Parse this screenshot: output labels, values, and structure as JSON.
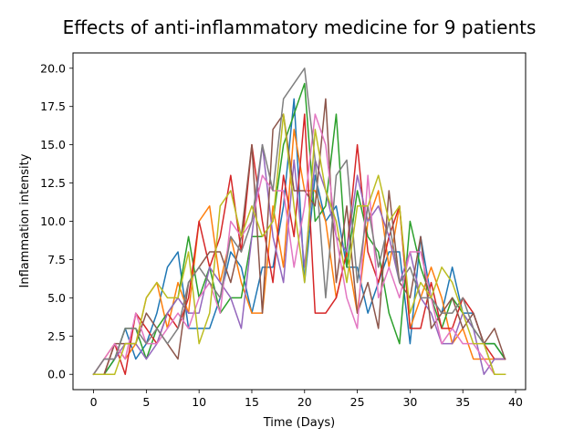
{
  "chart_data": {
    "type": "line",
    "title": "Effects of anti-inflammatory medicine for 9 patients",
    "xlabel": "Time (Days)",
    "ylabel": "Inflammation intensity",
    "xlim": [
      -1.95,
      40.95
    ],
    "ylim": [
      -1.0,
      21.0
    ],
    "xticks": [
      0,
      5,
      10,
      15,
      20,
      25,
      30,
      35,
      40
    ],
    "yticks": [
      0.0,
      2.5,
      5.0,
      7.5,
      10.0,
      12.5,
      15.0,
      17.5,
      20.0
    ],
    "ytick_labels": [
      "0.0",
      "2.5",
      "5.0",
      "7.5",
      "10.0",
      "12.5",
      "15.0",
      "17.5",
      "20.0"
    ],
    "grid": false,
    "x": [
      0,
      1,
      2,
      3,
      4,
      5,
      6,
      7,
      8,
      9,
      10,
      11,
      12,
      13,
      14,
      15,
      16,
      17,
      18,
      19,
      20,
      21,
      22,
      23,
      24,
      25,
      26,
      27,
      28,
      29,
      30,
      31,
      32,
      33,
      34,
      35,
      36,
      37,
      38,
      39
    ],
    "series": [
      {
        "color": "#1f77b4",
        "values": [
          0,
          0,
          1,
          3,
          1,
          2,
          4,
          7,
          8,
          3,
          3,
          3,
          5,
          8,
          7,
          4,
          7,
          7,
          11,
          18,
          6,
          13,
          10,
          11,
          7,
          7,
          4,
          6,
          8,
          8,
          2,
          9,
          5,
          4,
          7,
          4,
          4,
          2,
          2,
          1
        ]
      },
      {
        "color": "#ff7f0e",
        "values": [
          0,
          1,
          2,
          1,
          2,
          5,
          6,
          3,
          6,
          4,
          10,
          11,
          6,
          9,
          6,
          4,
          4,
          11,
          7,
          16,
          12,
          12,
          10,
          5,
          8,
          4,
          10,
          12,
          7,
          11,
          3,
          5,
          7,
          5,
          2,
          3,
          1,
          1,
          1,
          1
        ]
      },
      {
        "color": "#2ca02c",
        "values": [
          0,
          0,
          1,
          3,
          3,
          1,
          3,
          4,
          5,
          9,
          5,
          7,
          4,
          5,
          5,
          9,
          9,
          10,
          15,
          17,
          19,
          10,
          11,
          17,
          7,
          12,
          9,
          8,
          4,
          2,
          10,
          7,
          5,
          3,
          5,
          4,
          3,
          2,
          2,
          1
        ]
      },
      {
        "color": "#d62728",
        "values": [
          0,
          0,
          2,
          0,
          4,
          3,
          2,
          4,
          3,
          5,
          10,
          7,
          9,
          13,
          8,
          15,
          10,
          6,
          13,
          9,
          17,
          4,
          4,
          5,
          8,
          15,
          8,
          6,
          9,
          11,
          3,
          3,
          6,
          3,
          3,
          5,
          4,
          2,
          1,
          1
        ]
      },
      {
        "color": "#9467bd",
        "values": [
          0,
          1,
          1,
          2,
          2,
          1,
          2,
          4,
          5,
          4,
          4,
          7,
          6,
          5,
          3,
          9,
          15,
          9,
          6,
          14,
          7,
          14,
          12,
          9,
          8,
          13,
          10,
          11,
          9,
          6,
          8,
          5,
          4,
          2,
          2,
          4,
          3,
          0,
          1,
          1
        ]
      },
      {
        "color": "#8c564b",
        "values": [
          0,
          0,
          2,
          2,
          2,
          4,
          3,
          2,
          1,
          6,
          7,
          8,
          8,
          6,
          9,
          15,
          4,
          16,
          17,
          12,
          12,
          11,
          18,
          6,
          11,
          4,
          6,
          3,
          12,
          6,
          5,
          9,
          3,
          4,
          5,
          3,
          4,
          2,
          3,
          1
        ]
      },
      {
        "color": "#e377c2",
        "values": [
          0,
          1,
          2,
          1,
          4,
          2,
          2,
          3,
          4,
          3,
          5,
          6,
          4,
          10,
          9,
          10,
          13,
          12,
          12,
          7,
          11,
          17,
          15,
          9,
          5,
          3,
          13,
          5,
          7,
          5,
          8,
          8,
          5,
          2,
          3,
          2,
          2,
          1,
          0,
          0
        ]
      },
      {
        "color": "#7f7f7f",
        "values": [
          0,
          1,
          1,
          3,
          3,
          2,
          3,
          2,
          3,
          6,
          7,
          6,
          5,
          9,
          8,
          10,
          15,
          12,
          18,
          19,
          20,
          14,
          5,
          13,
          14,
          6,
          11,
          7,
          10,
          6,
          7,
          5,
          5,
          4,
          4,
          5,
          3,
          2,
          0,
          0
        ]
      },
      {
        "color": "#bcbd22",
        "values": [
          0,
          0,
          0,
          2,
          2,
          5,
          6,
          5,
          5,
          8,
          2,
          4,
          11,
          12,
          9,
          11,
          9,
          10,
          17,
          11,
          6,
          16,
          12,
          10,
          6,
          11,
          11,
          13,
          10,
          11,
          4,
          6,
          5,
          7,
          6,
          4,
          2,
          2,
          0,
          0
        ]
      }
    ]
  }
}
